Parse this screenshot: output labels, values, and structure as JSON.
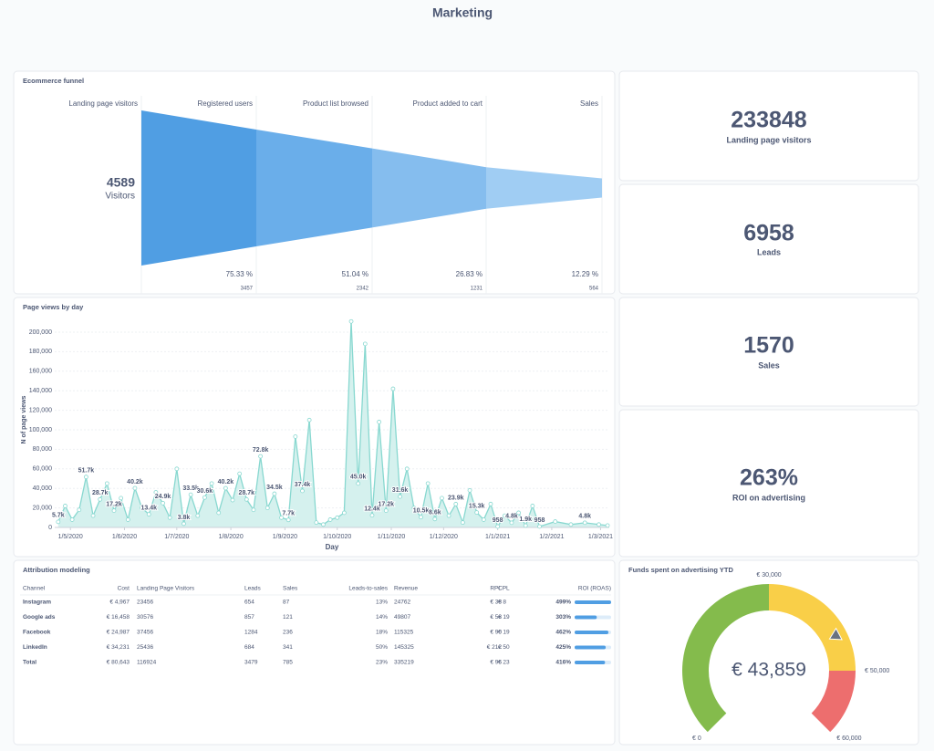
{
  "header": {
    "title": "Marketing"
  },
  "funnel": {
    "title": "Ecommerce funnel",
    "stages": [
      "Landing page visitors",
      "Registered users",
      "Product list browsed",
      "Product added to cart",
      "Sales"
    ],
    "values": [
      4589,
      3457,
      2342,
      1231,
      564
    ],
    "main_label": "Visitors",
    "percents": [
      75.33,
      51.04,
      26.83,
      12.29
    ],
    "percent_labels": [
      "75.33 %",
      "51.04 %",
      "26.83 %",
      "12.29 %"
    ],
    "colors": [
      "#509ee3",
      "#6aaeea",
      "#85bdee",
      "#a0cdf3"
    ]
  },
  "kpis": [
    {
      "value": 233848,
      "label": "Landing page visitors"
    },
    {
      "value": 6958,
      "label": "Leads"
    },
    {
      "value": 1570,
      "label": "Sales"
    },
    {
      "value": 263,
      "value_label": "263%",
      "label": "ROI on advertising"
    }
  ],
  "page_views": {
    "type": "line",
    "title": "Page views by day",
    "x_label": "Day",
    "y_label": "N of page views",
    "color": "#88d8d0",
    "area_color": "#d5f1ee",
    "grid": true,
    "x": [
      "2020-04-24",
      "2020-04-28",
      "2020-05-02",
      "2020-05-06",
      "2020-05-10",
      "2020-05-14",
      "2020-05-18",
      "2020-05-22",
      "2020-05-26",
      "2020-05-30",
      "2020-06-03",
      "2020-06-07",
      "2020-06-11",
      "2020-06-15",
      "2020-06-19",
      "2020-06-23",
      "2020-06-27",
      "2020-07-01",
      "2020-07-05",
      "2020-07-09",
      "2020-07-13",
      "2020-07-17",
      "2020-07-21",
      "2020-07-25",
      "2020-07-29",
      "2020-08-02",
      "2020-08-06",
      "2020-08-10",
      "2020-08-14",
      "2020-08-18",
      "2020-08-22",
      "2020-08-26",
      "2020-08-30",
      "2020-09-03",
      "2020-09-07",
      "2020-09-11",
      "2020-09-15",
      "2020-09-19",
      "2020-09-23",
      "2020-09-27",
      "2020-10-01",
      "2020-10-05",
      "2020-10-09",
      "2020-10-13",
      "2020-10-17",
      "2020-10-21",
      "2020-10-25",
      "2020-10-29",
      "2020-11-02",
      "2020-11-06",
      "2020-11-10",
      "2020-11-14",
      "2020-11-18",
      "2020-11-22",
      "2020-11-26",
      "2020-11-30",
      "2020-12-04",
      "2020-12-08",
      "2020-12-12",
      "2020-12-16",
      "2020-12-20",
      "2020-12-24",
      "2020-12-28",
      "2021-01-01",
      "2021-01-05",
      "2021-01-09",
      "2021-01-13",
      "2021-01-17",
      "2021-01-21",
      "2021-01-25",
      "2021-02-03",
      "2021-02-12",
      "2021-02-20",
      "2021-02-28",
      "2021-03-05"
    ],
    "values": [
      5700,
      22000,
      8000,
      18000,
      51700,
      12000,
      28700,
      45000,
      17200,
      30000,
      8000,
      40200,
      20000,
      13400,
      36000,
      24900,
      10000,
      60000,
      3800,
      33500,
      12000,
      30600,
      45000,
      15000,
      40200,
      28000,
      55000,
      28700,
      18000,
      72800,
      20000,
      34500,
      10000,
      7700,
      93000,
      37400,
      110000,
      5000,
      3000,
      8000,
      10000,
      15000,
      211000,
      45000,
      188000,
      12400,
      108000,
      17200,
      142000,
      31600,
      60000,
      20000,
      10500,
      45000,
      8600,
      30000,
      12000,
      23900,
      5000,
      38000,
      15300,
      8000,
      24000,
      958,
      12000,
      4800,
      15000,
      1900,
      22000,
      958,
      6000,
      3000,
      4800,
      3000,
      2000
    ],
    "value_labels": [
      "5.7k",
      null,
      null,
      null,
      "51.7k",
      null,
      "28.7k",
      null,
      "17.2k",
      null,
      null,
      "40.2k",
      null,
      "13.4k",
      null,
      "24.9k",
      null,
      null,
      "3.8k",
      "33.5k",
      null,
      "30.6k",
      null,
      null,
      "40.2k",
      null,
      null,
      "28.7k",
      null,
      "72.8k",
      null,
      "34.5k",
      null,
      "7.7k",
      null,
      "37.4k",
      null,
      null,
      null,
      null,
      null,
      null,
      null,
      "45.0k",
      null,
      "12.4k",
      null,
      "17.2k",
      null,
      "31.6k",
      null,
      null,
      "10.5k",
      null,
      "8.6k",
      null,
      null,
      "23.9k",
      null,
      null,
      "15.3k",
      null,
      null,
      "958",
      null,
      "4.8k",
      null,
      "1.9k",
      null,
      "958",
      null,
      null,
      "4.8k",
      null,
      null
    ],
    "xlim": [
      "2020-04-22",
      "2021-03-06"
    ],
    "xticks": [
      {
        "value": "2020-05-01",
        "label": "1/5/2020"
      },
      {
        "value": "2020-06-01",
        "label": "1/6/2020"
      },
      {
        "value": "2020-07-01",
        "label": "1/7/2020"
      },
      {
        "value": "2020-08-01",
        "label": "1/8/2020"
      },
      {
        "value": "2020-09-01",
        "label": "1/9/2020"
      },
      {
        "value": "2020-10-01",
        "label": "1/10/2020"
      },
      {
        "value": "2020-11-01",
        "label": "1/11/2020"
      },
      {
        "value": "2020-12-01",
        "label": "1/12/2020"
      },
      {
        "value": "2021-01-01",
        "label": "1/1/2021"
      },
      {
        "value": "2021-02-01",
        "label": "1/2/2021"
      },
      {
        "value": "2021-03-01",
        "label": "1/3/2021"
      }
    ],
    "ylim": [
      0,
      220000
    ],
    "yticks": [
      0,
      {
        "value": 20000,
        "label": "20,000"
      },
      {
        "value": 40000,
        "label": "40,000"
      },
      {
        "value": 60000,
        "label": "60,000"
      },
      {
        "value": 80000,
        "label": "80,000"
      },
      {
        "value": 100000,
        "label": "100,000"
      },
      {
        "value": 120000,
        "label": "120,000"
      },
      {
        "value": 140000,
        "label": "140,000"
      },
      {
        "value": 160000,
        "label": "160,000"
      },
      {
        "value": 180000,
        "label": "180,000"
      },
      {
        "value": 200000,
        "label": "200,000"
      }
    ]
  },
  "attribution": {
    "title": "Attribution modeling",
    "columns": [
      "Channel",
      "Cost",
      "Landing Page Visitors",
      "Leads",
      "Sales",
      "Leads-to-sales",
      "Revenue",
      "RPL",
      "CPL",
      "ROI (ROAS)"
    ],
    "rows": [
      [
        "Instagram",
        "€ 4,967",
        "23456",
        "654",
        "87",
        "13%",
        "24762",
        "€ 38",
        "€ 8",
        "499%"
      ],
      [
        "Google ads",
        "€ 16,458",
        "30576",
        "857",
        "121",
        "14%",
        "49807",
        "€ 58",
        "€ 19",
        "303%"
      ],
      [
        "Facebook",
        "€ 24,987",
        "37456",
        "1284",
        "236",
        "18%",
        "115325",
        "€ 90",
        "€ 19",
        "462%"
      ],
      [
        "LinkedIn",
        "€ 34,231",
        "25436",
        "684",
        "341",
        "50%",
        "145325",
        "€ 212",
        "€ 50",
        "425%"
      ],
      [
        "Total",
        "€ 80,643",
        "116924",
        "3479",
        "785",
        "23%",
        "335219",
        "€ 96",
        "€ 23",
        "416%"
      ]
    ],
    "roi_values": [
      499,
      303,
      462,
      425,
      416
    ],
    "bar_color": "#509ee3"
  },
  "gauge": {
    "title": "Funds spent on advertising YTD",
    "value": 43859,
    "value_label": "€ 43,859",
    "segments": [
      {
        "from": 0,
        "to": 30000,
        "color": "#84bb4c"
      },
      {
        "from": 30000,
        "to": 50000,
        "color": "#f9cf48"
      },
      {
        "from": 50000,
        "to": 60000,
        "color": "#ed6e6e"
      }
    ],
    "ticks": [
      {
        "value": 0,
        "label": "€ 0"
      },
      {
        "value": 30000,
        "label": "€ 30,000"
      },
      {
        "value": 50000,
        "label": "€ 50,000"
      },
      {
        "value": 60000,
        "label": "€ 60,000"
      }
    ]
  }
}
